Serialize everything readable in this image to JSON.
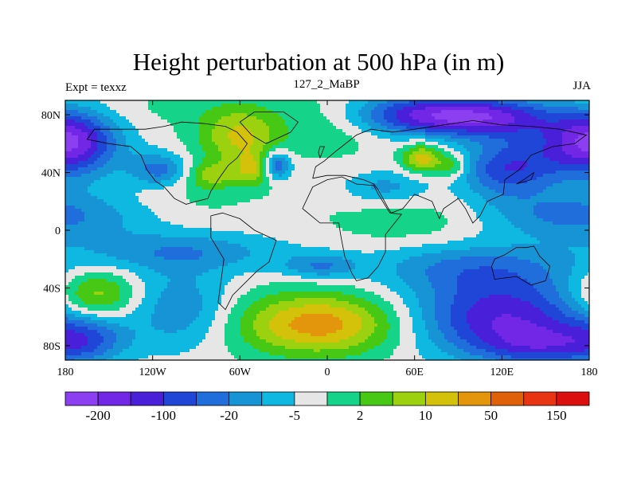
{
  "header": {
    "title": "Height perturbation at 500 hPa (in m)",
    "left_string": "Expt = texxz",
    "center_string": "127_2_MaBP",
    "right_string": "JJA"
  },
  "chart_data": {
    "type": "heatmap",
    "title": "Height perturbation at 500 hPa (in m)",
    "xlim": [
      -180,
      180
    ],
    "ylim": [
      -90,
      90
    ],
    "x_ticks": [
      {
        "value": -180,
        "label": "180"
      },
      {
        "value": -120,
        "label": "120W"
      },
      {
        "value": -60,
        "label": "60W"
      },
      {
        "value": 0,
        "label": "0"
      },
      {
        "value": 60,
        "label": "60E"
      },
      {
        "value": 120,
        "label": "120E"
      },
      {
        "value": 180,
        "label": "180"
      }
    ],
    "y_ticks": [
      {
        "value": 80,
        "label": "80N"
      },
      {
        "value": 40,
        "label": "40N"
      },
      {
        "value": 0,
        "label": "0"
      },
      {
        "value": -40,
        "label": "40S"
      },
      {
        "value": -80,
        "label": "80S"
      }
    ],
    "colorbar": {
      "colors": [
        "#8c3ff0",
        "#7227e6",
        "#4a1fd9",
        "#2046d8",
        "#1f6edc",
        "#1794d6",
        "#0fb8e0",
        "#e6e6e6",
        "#16d38a",
        "#46c814",
        "#9bd10f",
        "#d4c10a",
        "#e3960c",
        "#e0600a",
        "#e93414",
        "#dc0f0f"
      ],
      "labels": [
        "-200",
        "-100",
        "-20",
        "-5",
        "2",
        "10",
        "50",
        "150"
      ]
    },
    "features": [
      {
        "lon": -90,
        "lat": 85,
        "sx": 55,
        "sy": 10,
        "v": 0.5
      },
      {
        "lon": 175,
        "lat": 55,
        "sx": 30,
        "sy": 16,
        "v": -4
      },
      {
        "lon": -175,
        "lat": 65,
        "sx": 20,
        "sy": 14,
        "v": -3.5
      },
      {
        "lon": -115,
        "lat": 42,
        "sx": 14,
        "sy": 8,
        "v": -3
      },
      {
        "lon": -92,
        "lat": 20,
        "sx": 30,
        "sy": 12,
        "v": 0.5
      },
      {
        "lon": -60,
        "lat": 65,
        "sx": 20,
        "sy": 14,
        "v": 3.5
      },
      {
        "lon": -50,
        "lat": 42,
        "sx": 10,
        "sy": 8,
        "v": 3
      },
      {
        "lon": -35,
        "lat": 45,
        "sx": 7,
        "sy": 7,
        "v": -4.5
      },
      {
        "lon": -80,
        "lat": 38,
        "sx": 12,
        "sy": 7,
        "v": 2.5
      },
      {
        "lon": 5,
        "lat": 75,
        "sx": 25,
        "sy": 14,
        "v": 1.5
      },
      {
        "lon": 40,
        "lat": 30,
        "sx": 20,
        "sy": 8,
        "v": -2
      },
      {
        "lon": 65,
        "lat": 80,
        "sx": 40,
        "sy": 10,
        "v": -5
      },
      {
        "lon": 65,
        "lat": 50,
        "sx": 9,
        "sy": 7,
        "v": 4
      },
      {
        "lon": 85,
        "lat": 45,
        "sx": 8,
        "sy": 6,
        "v": 2.5
      },
      {
        "lon": 115,
        "lat": 78,
        "sx": 35,
        "sy": 10,
        "v": -4
      },
      {
        "lon": 122,
        "lat": 42,
        "sx": 22,
        "sy": 14,
        "v": -4
      },
      {
        "lon": 170,
        "lat": 10,
        "sx": 45,
        "sy": 12,
        "v": -3
      },
      {
        "lon": 60,
        "lat": 5,
        "sx": 40,
        "sy": 12,
        "v": 1
      },
      {
        "lon": -100,
        "lat": -15,
        "sx": 50,
        "sy": 10,
        "v": -2.5
      },
      {
        "lon": -5,
        "lat": -25,
        "sx": 18,
        "sy": 6,
        "v": -2.5
      },
      {
        "lon": 100,
        "lat": -25,
        "sx": 50,
        "sy": 12,
        "v": -2.5
      },
      {
        "lon": -160,
        "lat": -45,
        "sx": 20,
        "sy": 12,
        "v": 3.5
      },
      {
        "lon": -165,
        "lat": -75,
        "sx": 20,
        "sy": 12,
        "v": -3
      },
      {
        "lon": -100,
        "lat": -55,
        "sx": 25,
        "sy": 20,
        "v": -2.5
      },
      {
        "lon": -5,
        "lat": -65,
        "sx": 40,
        "sy": 15,
        "v": 5
      },
      {
        "lon": 120,
        "lat": -60,
        "sx": 45,
        "sy": 20,
        "v": -5.5
      },
      {
        "lon": 150,
        "lat": -80,
        "sx": 30,
        "sy": 10,
        "v": -3
      }
    ]
  },
  "coastline": [
    [
      [
        -112,
        72
      ],
      [
        -100,
        75
      ],
      [
        -85,
        74
      ],
      [
        -70,
        72
      ],
      [
        -62,
        68
      ],
      [
        -55,
        60
      ],
      [
        -62,
        50
      ],
      [
        -68,
        45
      ],
      [
        -75,
        35
      ],
      [
        -80,
        27
      ],
      [
        -82,
        22
      ],
      [
        -90,
        20
      ],
      [
        -97,
        18
      ],
      [
        -105,
        22
      ],
      [
        -112,
        30
      ],
      [
        -118,
        34
      ],
      [
        -124,
        42
      ],
      [
        -128,
        52
      ],
      [
        -135,
        58
      ],
      [
        -150,
        60
      ],
      [
        -165,
        63
      ],
      [
        -160,
        70
      ],
      [
        -140,
        70
      ],
      [
        -125,
        70
      ],
      [
        -112,
        72
      ]
    ],
    [
      [
        -50,
        82
      ],
      [
        -30,
        82
      ],
      [
        -20,
        75
      ],
      [
        -25,
        68
      ],
      [
        -42,
        60
      ],
      [
        -52,
        66
      ],
      [
        -60,
        75
      ],
      [
        -50,
        82
      ]
    ],
    [
      [
        -80,
        10
      ],
      [
        -72,
        12
      ],
      [
        -60,
        8
      ],
      [
        -50,
        0
      ],
      [
        -35,
        -7
      ],
      [
        -40,
        -22
      ],
      [
        -48,
        -28
      ],
      [
        -58,
        -38
      ],
      [
        -65,
        -45
      ],
      [
        -70,
        -55
      ],
      [
        -75,
        -50
      ],
      [
        -73,
        -35
      ],
      [
        -71,
        -20
      ],
      [
        -80,
        -5
      ],
      [
        -80,
        10
      ]
    ],
    [
      [
        -10,
        36
      ],
      [
        -8,
        44
      ],
      [
        -2,
        48
      ],
      [
        5,
        54
      ],
      [
        10,
        58
      ],
      [
        20,
        66
      ],
      [
        30,
        70
      ],
      [
        45,
        68
      ],
      [
        60,
        70
      ],
      [
        80,
        73
      ],
      [
        100,
        76
      ],
      [
        120,
        73
      ],
      [
        140,
        72
      ],
      [
        160,
        70
      ],
      [
        178,
        66
      ],
      [
        170,
        60
      ],
      [
        155,
        58
      ],
      [
        140,
        52
      ],
      [
        132,
        42
      ],
      [
        122,
        35
      ],
      [
        121,
        25
      ],
      [
        110,
        20
      ],
      [
        105,
        10
      ],
      [
        100,
        5
      ],
      [
        95,
        15
      ],
      [
        90,
        22
      ],
      [
        80,
        15
      ],
      [
        77,
        8
      ],
      [
        72,
        20
      ],
      [
        60,
        25
      ],
      [
        52,
        15
      ],
      [
        44,
        12
      ],
      [
        42,
        15
      ],
      [
        35,
        28
      ],
      [
        32,
        32
      ],
      [
        25,
        35
      ],
      [
        12,
        38
      ],
      [
        0,
        38
      ],
      [
        -10,
        36
      ]
    ],
    [
      [
        -17,
        15
      ],
      [
        -10,
        30
      ],
      [
        0,
        35
      ],
      [
        10,
        37
      ],
      [
        20,
        32
      ],
      [
        32,
        31
      ],
      [
        35,
        25
      ],
      [
        43,
        12
      ],
      [
        51,
        11
      ],
      [
        40,
        -3
      ],
      [
        40,
        -15
      ],
      [
        35,
        -25
      ],
      [
        28,
        -33
      ],
      [
        20,
        -35
      ],
      [
        17,
        -30
      ],
      [
        12,
        -18
      ],
      [
        9,
        -2
      ],
      [
        8,
        5
      ],
      [
        -5,
        5
      ],
      [
        -17,
        15
      ]
    ],
    [
      [
        115,
        -20
      ],
      [
        122,
        -17
      ],
      [
        130,
        -12
      ],
      [
        137,
        -12
      ],
      [
        142,
        -11
      ],
      [
        146,
        -18
      ],
      [
        153,
        -25
      ],
      [
        150,
        -35
      ],
      [
        140,
        -38
      ],
      [
        130,
        -32
      ],
      [
        115,
        -34
      ],
      [
        113,
        -25
      ],
      [
        115,
        -20
      ]
    ],
    [
      [
        -5,
        50
      ],
      [
        -2,
        58
      ],
      [
        -5,
        58
      ],
      [
        -6,
        54
      ],
      [
        -5,
        50
      ]
    ],
    [
      [
        130,
        32
      ],
      [
        135,
        35
      ],
      [
        142,
        40
      ],
      [
        140,
        35
      ],
      [
        130,
        32
      ]
    ]
  ]
}
